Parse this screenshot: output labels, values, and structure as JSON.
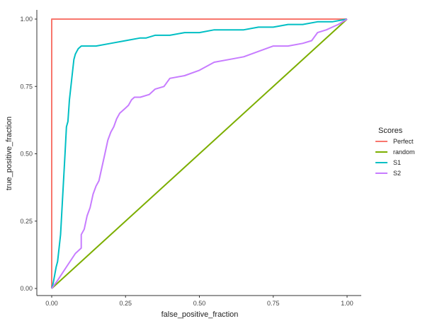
{
  "chart_data": {
    "type": "line",
    "title": "",
    "xlabel": "false_positive_fraction",
    "ylabel": "true_positive_fraction",
    "xlim": [
      0,
      1
    ],
    "ylim": [
      0,
      1
    ],
    "x_ticks": [
      "0.00",
      "0.25",
      "0.50",
      "0.75",
      "1.00"
    ],
    "y_ticks": [
      "0.00",
      "0.25",
      "0.50",
      "0.75",
      "1.00"
    ],
    "grid": false,
    "legend": {
      "title": "Scores",
      "placement": "right"
    },
    "series": [
      {
        "name": "Perfect",
        "color": "#F8766D",
        "x": [
          0,
          0,
          1
        ],
        "y": [
          0,
          1,
          1
        ]
      },
      {
        "name": "random",
        "color": "#7CAE00",
        "x": [
          0,
          1
        ],
        "y": [
          0,
          1
        ]
      },
      {
        "name": "S1",
        "color": "#00BFC4",
        "x": [
          0,
          0.005,
          0.01,
          0.015,
          0.02,
          0.025,
          0.03,
          0.035,
          0.04,
          0.045,
          0.05,
          0.055,
          0.06,
          0.065,
          0.07,
          0.075,
          0.08,
          0.085,
          0.09,
          0.1,
          0.12,
          0.15,
          0.2,
          0.25,
          0.3,
          0.32,
          0.35,
          0.4,
          0.45,
          0.5,
          0.55,
          0.6,
          0.65,
          0.7,
          0.72,
          0.75,
          0.8,
          0.85,
          0.9,
          0.95,
          1.0
        ],
        "y": [
          0,
          0.02,
          0.05,
          0.08,
          0.1,
          0.15,
          0.2,
          0.3,
          0.4,
          0.5,
          0.6,
          0.62,
          0.7,
          0.75,
          0.8,
          0.85,
          0.87,
          0.88,
          0.89,
          0.9,
          0.9,
          0.9,
          0.91,
          0.92,
          0.93,
          0.93,
          0.94,
          0.94,
          0.95,
          0.95,
          0.96,
          0.96,
          0.96,
          0.97,
          0.97,
          0.97,
          0.98,
          0.98,
          0.99,
          0.99,
          1.0
        ]
      },
      {
        "name": "S2",
        "color": "#C77CFF",
        "x": [
          0,
          0.02,
          0.05,
          0.08,
          0.1,
          0.1,
          0.11,
          0.12,
          0.13,
          0.14,
          0.15,
          0.16,
          0.17,
          0.18,
          0.19,
          0.2,
          0.21,
          0.22,
          0.23,
          0.24,
          0.25,
          0.26,
          0.27,
          0.28,
          0.3,
          0.33,
          0.35,
          0.38,
          0.4,
          0.45,
          0.5,
          0.55,
          0.6,
          0.65,
          0.7,
          0.75,
          0.8,
          0.85,
          0.88,
          0.9,
          0.93,
          0.95,
          0.97,
          1.0
        ],
        "y": [
          0,
          0.03,
          0.08,
          0.13,
          0.15,
          0.2,
          0.22,
          0.27,
          0.3,
          0.35,
          0.38,
          0.4,
          0.45,
          0.5,
          0.55,
          0.58,
          0.6,
          0.63,
          0.65,
          0.66,
          0.67,
          0.68,
          0.7,
          0.71,
          0.71,
          0.72,
          0.74,
          0.75,
          0.78,
          0.79,
          0.81,
          0.84,
          0.85,
          0.86,
          0.88,
          0.9,
          0.9,
          0.91,
          0.92,
          0.95,
          0.96,
          0.97,
          0.98,
          1.0
        ]
      }
    ]
  }
}
